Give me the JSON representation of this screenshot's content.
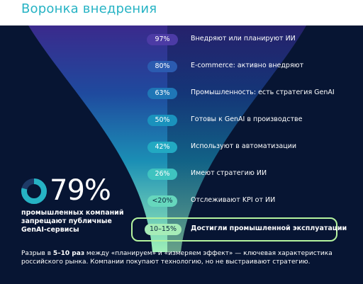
{
  "title": "Воронка внедрения",
  "funnel": [
    {
      "value": "97%",
      "label": "Внедряют или планируют ИИ"
    },
    {
      "value": "80%",
      "label": "E-commerce: активно внедряют"
    },
    {
      "value": "63%",
      "label": "Промышленность: есть стратегия GenAI"
    },
    {
      "value": "50%",
      "label": "Готовы к GenAI в производстве"
    },
    {
      "value": "42%",
      "label": "Используют в автоматизации"
    },
    {
      "value": "26%",
      "label": "Имеют стратегию ИИ"
    },
    {
      "value": "<20%",
      "label": "Отслеживают KPI от ИИ"
    },
    {
      "value": "10–15%",
      "label": "Достигли промышленной эксплуатации"
    }
  ],
  "stat": {
    "value": "79%",
    "fraction": 0.79,
    "description": "промышленных компаний запрещают публичные GenAI-сервисы"
  },
  "footnote": {
    "part1": "Разрыв в ",
    "bold": "5–10 раз",
    "part2": " между «планируем» и «измеряем эффект» — ключевая характеристика российского рынка. Компании покупают технологию, но не выстраивают стратегию."
  },
  "colors": {
    "background": "#071533",
    "accent": "#26b3c4",
    "highlight": "#b4f39e"
  }
}
